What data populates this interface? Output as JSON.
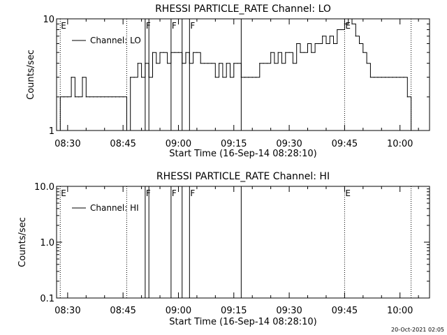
{
  "footer": {
    "timestamp": "20-Oct-2021 02:05"
  },
  "chart_data": [
    {
      "type": "line",
      "title": "RHESSI PARTICLE_RATE Channel: LO",
      "xlabel": "Start Time (16-Sep-14 08:28:10)",
      "ylabel": "Counts/sec",
      "yscale": "log",
      "xlim": [
        "08:27",
        "10:08"
      ],
      "ylim": [
        1,
        10
      ],
      "x_ticks": [
        "08:30",
        "08:45",
        "09:00",
        "09:15",
        "09:30",
        "09:45",
        "10:00"
      ],
      "y_ticks": [
        "1",
        "10"
      ],
      "legend": {
        "placement": "top-left",
        "entries": [
          "Channel: LO"
        ]
      },
      "flag_markers": [
        {
          "time": "08:28",
          "label": "E",
          "style": "dotted"
        },
        {
          "time": "08:46",
          "label": "",
          "style": "dotted"
        },
        {
          "time": "08:51",
          "label": "F",
          "style": "solid"
        },
        {
          "time": "08:52",
          "label": "",
          "style": "solid"
        },
        {
          "time": "08:58",
          "label": "F",
          "style": "solid"
        },
        {
          "time": "09:01",
          "label": "",
          "style": "solid"
        },
        {
          "time": "09:03",
          "label": "F",
          "style": "solid"
        },
        {
          "time": "09:17",
          "label": "",
          "style": "solid"
        },
        {
          "time": "09:45",
          "label": "E",
          "style": "dotted"
        },
        {
          "time": "10:03",
          "label": "",
          "style": "dotted"
        }
      ],
      "series": [
        {
          "name": "Channel: LO",
          "x": [
            "08:27",
            "08:28",
            "08:29",
            "08:30",
            "08:31",
            "08:32",
            "08:33",
            "08:34",
            "08:35",
            "08:36",
            "08:37",
            "08:38",
            "08:39",
            "08:40",
            "08:41",
            "08:42",
            "08:43",
            "08:44",
            "08:45",
            "08:46",
            "08:47",
            "08:48",
            "08:49",
            "08:50",
            "08:51",
            "08:52",
            "08:53",
            "08:54",
            "08:55",
            "08:56",
            "08:57",
            "08:58",
            "08:59",
            "09:00",
            "09:01",
            "09:02",
            "09:03",
            "09:04",
            "09:05",
            "09:06",
            "09:07",
            "09:08",
            "09:09",
            "09:10",
            "09:11",
            "09:12",
            "09:13",
            "09:14",
            "09:15",
            "09:16",
            "09:17",
            "09:18",
            "09:19",
            "09:20",
            "09:21",
            "09:22",
            "09:23",
            "09:24",
            "09:25",
            "09:26",
            "09:27",
            "09:28",
            "09:29",
            "09:30",
            "09:31",
            "09:32",
            "09:33",
            "09:34",
            "09:35",
            "09:36",
            "09:37",
            "09:38",
            "09:39",
            "09:40",
            "09:41",
            "09:42",
            "09:43",
            "09:44",
            "09:45",
            "09:46",
            "09:47",
            "09:48",
            "09:49",
            "09:50",
            "09:51",
            "09:52",
            "09:53",
            "09:54",
            "09:55",
            "09:56",
            "09:57",
            "09:58",
            "09:59",
            "10:00",
            "10:01",
            "10:02",
            "10:03"
          ],
          "values": [
            1,
            2,
            2,
            2,
            3,
            2,
            2,
            3,
            2,
            2,
            2,
            2,
            2,
            2,
            2,
            2,
            2,
            2,
            2,
            1,
            3,
            3,
            4,
            3,
            4,
            3,
            5,
            4,
            5,
            5,
            4,
            5,
            5,
            5,
            4,
            5,
            4,
            5,
            5,
            4,
            4,
            4,
            4,
            3,
            4,
            3,
            4,
            3,
            4,
            4,
            3,
            3,
            3,
            3,
            3,
            4,
            4,
            4,
            5,
            4,
            5,
            4,
            5,
            5,
            4,
            6,
            5,
            5,
            6,
            5,
            6,
            6,
            7,
            6,
            7,
            6,
            8,
            8,
            9,
            10,
            9,
            7,
            6,
            5,
            4,
            3,
            3,
            3,
            3,
            3,
            3,
            3,
            3,
            3,
            3,
            2,
            1
          ]
        }
      ]
    },
    {
      "type": "line",
      "title": "RHESSI PARTICLE_RATE Channel: HI",
      "xlabel": "Start Time (16-Sep-14 08:28:10)",
      "ylabel": "Counts/sec",
      "yscale": "log",
      "xlim": [
        "08:27",
        "10:08"
      ],
      "ylim": [
        0.1,
        10.0
      ],
      "x_ticks": [
        "08:30",
        "08:45",
        "09:00",
        "09:15",
        "09:30",
        "09:45",
        "10:00"
      ],
      "y_ticks": [
        "0.1",
        "1.0",
        "10.0"
      ],
      "legend": {
        "placement": "top-left",
        "entries": [
          "Channel: HI"
        ]
      },
      "flag_markers": [
        {
          "time": "08:28",
          "label": "E",
          "style": "dotted"
        },
        {
          "time": "08:46",
          "label": "",
          "style": "dotted"
        },
        {
          "time": "08:51",
          "label": "F",
          "style": "solid"
        },
        {
          "time": "08:52",
          "label": "",
          "style": "solid"
        },
        {
          "time": "08:58",
          "label": "F",
          "style": "solid"
        },
        {
          "time": "09:01",
          "label": "",
          "style": "solid"
        },
        {
          "time": "09:03",
          "label": "F",
          "style": "solid"
        },
        {
          "time": "09:17",
          "label": "",
          "style": "solid"
        },
        {
          "time": "09:45",
          "label": "E",
          "style": "dotted"
        },
        {
          "time": "10:03",
          "label": "",
          "style": "dotted"
        }
      ],
      "series": [
        {
          "name": "Channel: HI",
          "x": [],
          "values": []
        }
      ]
    }
  ]
}
